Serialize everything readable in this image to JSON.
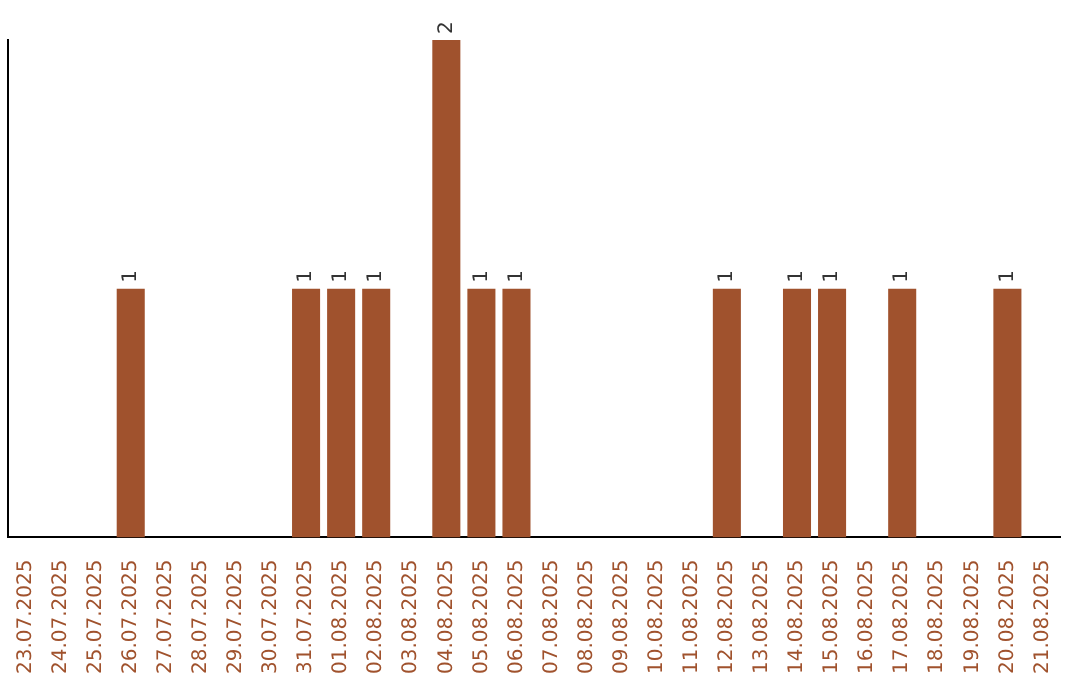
{
  "chart_data": {
    "type": "bar",
    "categories": [
      "23.07.2025",
      "24.07.2025",
      "25.07.2025",
      "26.07.2025",
      "27.07.2025",
      "28.07.2025",
      "29.07.2025",
      "30.07.2025",
      "31.07.2025",
      "01.08.2025",
      "02.08.2025",
      "03.08.2025",
      "04.08.2025",
      "05.08.2025",
      "06.08.2025",
      "07.08.2025",
      "08.08.2025",
      "09.08.2025",
      "10.08.2025",
      "11.08.2025",
      "12.08.2025",
      "13.08.2025",
      "14.08.2025",
      "15.08.2025",
      "16.08.2025",
      "17.08.2025",
      "18.08.2025",
      "19.08.2025",
      "20.08.2025",
      "21.08.2025"
    ],
    "values": [
      0,
      0,
      0,
      1,
      0,
      0,
      0,
      0,
      1,
      1,
      1,
      0,
      2,
      1,
      1,
      0,
      0,
      0,
      0,
      0,
      1,
      0,
      1,
      1,
      0,
      1,
      0,
      0,
      1,
      0
    ],
    "value_labels": [
      null,
      null,
      null,
      "1",
      null,
      null,
      null,
      null,
      "1",
      "1",
      "1",
      null,
      "2",
      "1",
      "1",
      null,
      null,
      null,
      null,
      null,
      "1",
      null,
      "1",
      "1",
      null,
      "1",
      null,
      null,
      "1",
      null
    ],
    "color": "#a0522d",
    "ylim": [
      0,
      2
    ],
    "grid": false,
    "legend": false,
    "tick_labels": "x"
  }
}
